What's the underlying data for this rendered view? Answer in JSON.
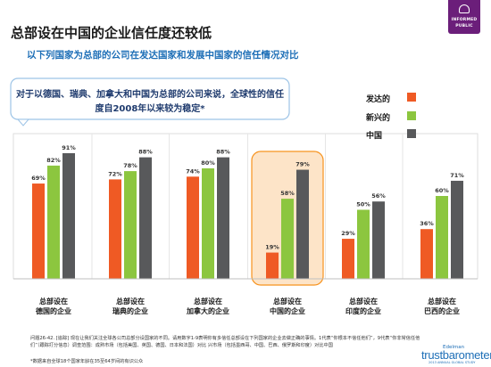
{
  "header": {
    "title": "总部设在中国的企业信任度还较低",
    "subtitle": "以下列国家为总部的公司在发达国家和发展中国家的信任情况对比"
  },
  "badge": {
    "line1": "INFORMED",
    "line2": "PUBLIC"
  },
  "callout": {
    "text": "对于以德国、瑞典、加拿大和中国为总部的公司来说，全球性的信任度自2008年以来较为稳定*"
  },
  "colors": {
    "developed": "#ef5a24",
    "emerging": "#8cc63f",
    "china": "#58595b",
    "accent_blue": "#1e6fb7",
    "highlight": "#f7931e"
  },
  "chart_data": {
    "type": "bar",
    "categories": [
      "总部设在德国的企业",
      "总部设在瑞典的企业",
      "总部设在加拿大的企业",
      "总部设在中国的企业",
      "总部设在印度的企业",
      "总部设在巴西的企业"
    ],
    "category_lines": [
      [
        "总部设在",
        "德国的企业"
      ],
      [
        "总部设在",
        "瑞典的企业"
      ],
      [
        "总部设在",
        "加拿大的企业"
      ],
      [
        "总部设在",
        "中国的企业"
      ],
      [
        "总部设在",
        "印度的企业"
      ],
      [
        "总部设在",
        "巴西的企业"
      ]
    ],
    "series": [
      {
        "name": "发达的",
        "values": [
          69,
          72,
          74,
          19,
          29,
          36
        ]
      },
      {
        "name": "新兴的",
        "values": [
          82,
          78,
          80,
          58,
          50,
          60
        ]
      },
      {
        "name": "中国",
        "values": [
          91,
          88,
          88,
          79,
          56,
          71
        ]
      }
    ],
    "value_suffix": "%",
    "ylim": [
      0,
      100
    ],
    "highlighted_category": 3,
    "legend_position": "top-right",
    "grid": false
  },
  "footnote": {
    "text": "问题26-42. [追踪] 现在让我们关注全球各公司总部分设国家的不同。请用数字1-9表明你有多信任总部设在下列国家的企业去做正确的事情。1代表“你根本不信任他们”，9代表“你非常信任他们”（跟踪打分信息）调查范围：成熟市场（包括美国、英国、德国、日本和法国）对比 兴市场（包括墨西哥、中国、巴西、俄罗斯和印度）对比中国",
    "note2": "*数据来自全球18个国家年龄在35至64岁间的有识公众"
  },
  "brand": {
    "small": "Edelman",
    "name": "trustbarometer",
    "tag": "2013 ANNUAL GLOBAL STUDY"
  }
}
